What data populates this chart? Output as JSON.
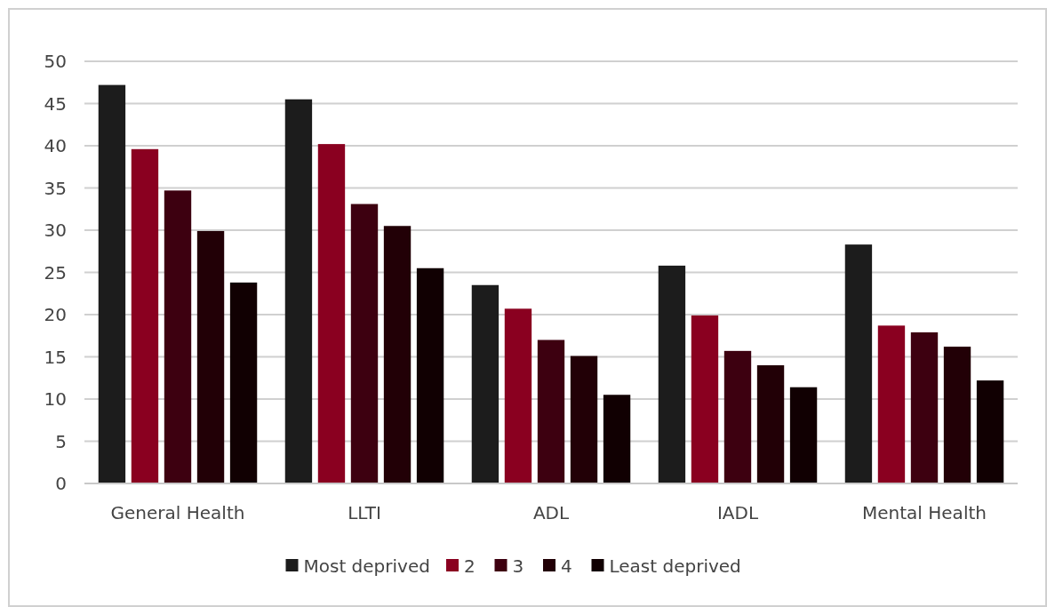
{
  "chart_data": {
    "type": "bar",
    "categories": [
      "General Health",
      "LLTI",
      "ADL",
      "IADL",
      "Mental Health"
    ],
    "series": [
      {
        "name": "Most deprived",
        "color": "#1c1c1c",
        "values": [
          47.2,
          45.5,
          23.5,
          25.8,
          28.3
        ]
      },
      {
        "name": "2",
        "color": "#8a0020",
        "values": [
          39.6,
          40.2,
          20.7,
          19.9,
          18.7
        ]
      },
      {
        "name": "3",
        "color": "#3d0010",
        "values": [
          34.7,
          33.1,
          17.0,
          15.7,
          17.9
        ]
      },
      {
        "name": "4",
        "color": "#220006",
        "values": [
          29.9,
          30.5,
          15.1,
          14.0,
          16.2
        ]
      },
      {
        "name": "Least deprived",
        "color": "#110002",
        "values": [
          23.8,
          25.5,
          10.5,
          11.4,
          12.2
        ]
      }
    ],
    "ylim": [
      0,
      50
    ],
    "yticks": [
      0,
      5,
      10,
      15,
      20,
      25,
      30,
      35,
      40,
      45,
      50
    ],
    "grid": "y",
    "legend": "bottom"
  }
}
